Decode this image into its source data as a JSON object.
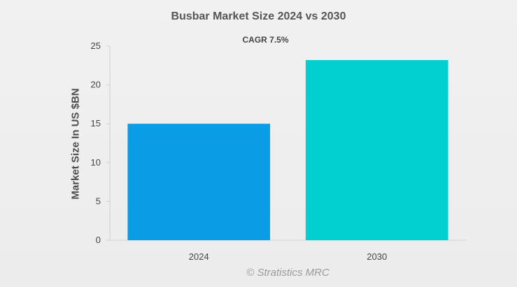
{
  "chart_data": {
    "type": "bar",
    "title": "Busbar Market Size 2024 vs 2030",
    "subtitle": "CAGR 7.5%",
    "xlabel": "",
    "ylabel": "Market Size In US $BN",
    "categories": [
      "2024",
      "2030"
    ],
    "values": [
      15,
      23.2
    ],
    "ylim": [
      0,
      25
    ],
    "yticks": [
      0,
      5,
      10,
      15,
      20,
      25
    ],
    "colors": [
      "#0a9de6",
      "#00d0d0"
    ],
    "grid": false,
    "legend": "none"
  },
  "watermark": "© Stratistics MRC"
}
